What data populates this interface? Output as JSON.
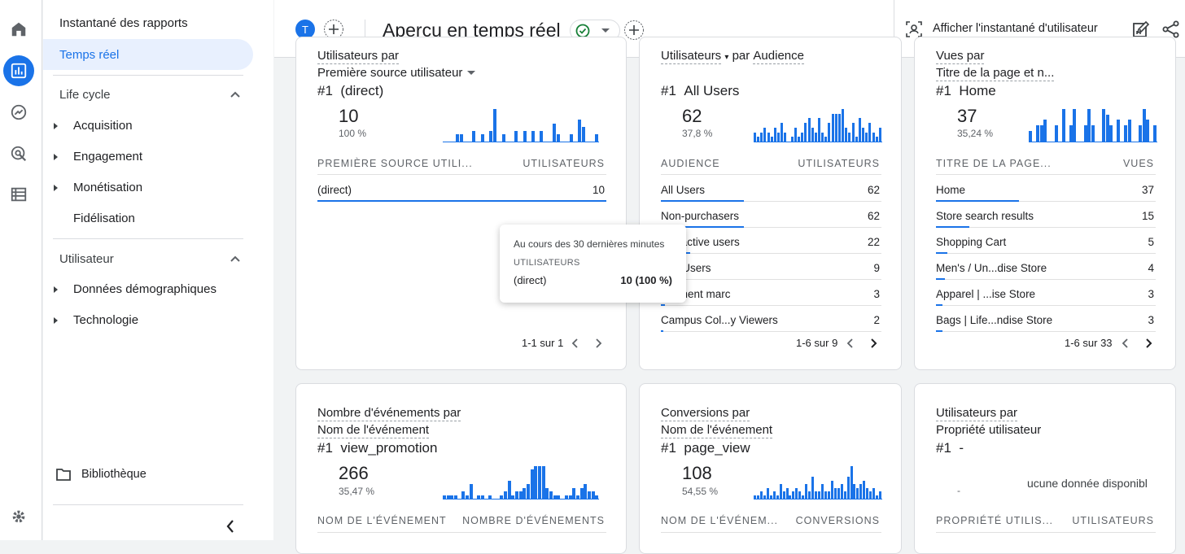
{
  "sidebar": {
    "snapshot": "Instantané des rapports",
    "realtime": "Temps réel",
    "section1": "Life cycle",
    "acquisition": "Acquisition",
    "engagement": "Engagement",
    "monetisation": "Monétisation",
    "fidelisation": "Fidélisation",
    "section2": "Utilisateur",
    "demographics": "Données démographiques",
    "technology": "Technologie",
    "library": "Bibliothèque"
  },
  "topbar": {
    "avatar": "T",
    "title": "Aperçu en temps réel",
    "user_snapshot": "Afficher l'instantané d'utilisateur"
  },
  "card1": {
    "title1": "Utilisateurs par",
    "title2": "Première source utilisateur",
    "rank": "#1",
    "top": "(direct)",
    "value": "10",
    "pct": "100 %",
    "col1": "PREMIÈRE SOURCE UTILI...",
    "col2": "UTILISATEURS",
    "rows": [
      {
        "label": "(direct)",
        "value": "10"
      }
    ],
    "pager": "1-1 sur 1"
  },
  "card2": {
    "title1": "Utilisateurs",
    "title2": "par",
    "title3": "Audience",
    "rank": "#1",
    "top": "All Users",
    "value": "62",
    "pct": "37,8 %",
    "col1": "AUDIENCE",
    "col2": "UTILISATEURS",
    "rows": [
      {
        "label": "All Users",
        "value": "62"
      },
      {
        "label": "Non-purchasers",
        "value": "62"
      },
      {
        "label": "ntly active users",
        "value": "22"
      },
      {
        "label": "ged Users",
        "value": "9"
      },
      {
        "label": "segment marc",
        "value": "3"
      },
      {
        "label": "Campus Col...y Viewers",
        "value": "2"
      }
    ],
    "pager": "1-6 sur 9"
  },
  "card3": {
    "title1": "Vues par",
    "title2": "Titre de la page et n...",
    "rank": "#1",
    "top": "Home",
    "value": "37",
    "pct": "35,24 %",
    "col1": "TITRE DE LA PAGE...",
    "col2": "VUES",
    "rows": [
      {
        "label": "Home",
        "value": "37"
      },
      {
        "label": "Store search results",
        "value": "15"
      },
      {
        "label": "Shopping Cart",
        "value": "5"
      },
      {
        "label": "Men's / Un...dise Store",
        "value": "4"
      },
      {
        "label": "Apparel | ...ise Store",
        "value": "3"
      },
      {
        "label": "Bags | Life...ndise Store",
        "value": "3"
      }
    ],
    "pager": "1-6 sur 33"
  },
  "card4": {
    "title1": "Nombre d'événements par",
    "title2": "Nom de l'événement",
    "rank": "#1",
    "top": "view_promotion",
    "value": "266",
    "pct": "35,47 %",
    "col1": "NOM DE L'ÉVÉNEMENT",
    "col2": "NOMBRE D'ÉVÉNEMENTS"
  },
  "card5": {
    "title1": "Conversions par",
    "title2": "Nom de l'événement",
    "rank": "#1",
    "top": "page_view",
    "value": "108",
    "pct": "54,55 %",
    "col1": "NOM DE L'ÉVÉNEM...",
    "col2": "CONVERSIONS"
  },
  "card6": {
    "title1": "Utilisateurs par",
    "title2": "Propriété utilisateur",
    "rank": "#1",
    "top": "-",
    "dash": "-",
    "nodata": "ucune donnée disponibl",
    "col1": "PROPRIÉTÉ UTILIS...",
    "col2": "UTILISATEURS"
  },
  "tooltip": {
    "period": "Au cours des 30 dernières minutes",
    "metric": "UTILISATEURS",
    "label": "(direct)",
    "value": "10 (100 %)"
  },
  "sparks": {
    "card1": [
      0,
      0,
      0,
      2,
      2,
      0,
      0,
      3,
      0,
      2,
      0,
      3,
      9,
      0,
      2,
      0,
      0,
      3,
      0,
      3,
      0,
      3,
      0,
      3,
      0,
      0,
      5,
      2,
      0,
      0,
      2,
      0,
      6,
      4,
      0,
      0,
      2
    ],
    "card2": [
      2,
      1,
      2,
      3,
      2,
      1,
      3,
      2,
      4,
      2,
      0,
      1,
      3,
      1,
      2,
      4,
      5,
      3,
      2,
      5,
      2,
      1,
      4,
      6,
      6,
      6,
      7,
      3,
      2,
      4,
      1,
      5,
      3,
      2,
      4,
      2,
      1,
      3
    ],
    "card3": [
      2,
      0,
      3,
      3,
      4,
      0,
      0,
      3,
      0,
      6,
      0,
      3,
      6,
      0,
      0,
      3,
      6,
      3,
      0,
      0,
      6,
      5,
      3,
      0,
      4,
      0,
      3,
      4,
      0,
      0,
      3,
      6,
      4,
      0,
      3
    ],
    "card4": [
      1,
      1,
      1,
      1,
      0,
      2,
      1,
      4,
      0,
      1,
      1,
      0,
      1,
      0,
      0,
      1,
      2,
      5,
      1,
      2,
      2,
      3,
      4,
      8,
      9,
      9,
      9,
      3,
      2,
      1,
      1,
      0,
      1,
      1,
      3,
      1,
      3,
      4,
      2,
      2,
      1
    ],
    "card5": [
      1,
      1,
      2,
      1,
      3,
      1,
      2,
      1,
      4,
      2,
      3,
      1,
      2,
      3,
      2,
      1,
      4,
      2,
      6,
      2,
      2,
      4,
      2,
      2,
      5,
      3,
      3,
      4,
      2,
      6,
      9,
      4,
      3,
      4,
      5,
      3,
      2,
      3,
      1,
      2
    ]
  },
  "colors": {
    "accent": "#1a73e8",
    "success": "#188038"
  }
}
